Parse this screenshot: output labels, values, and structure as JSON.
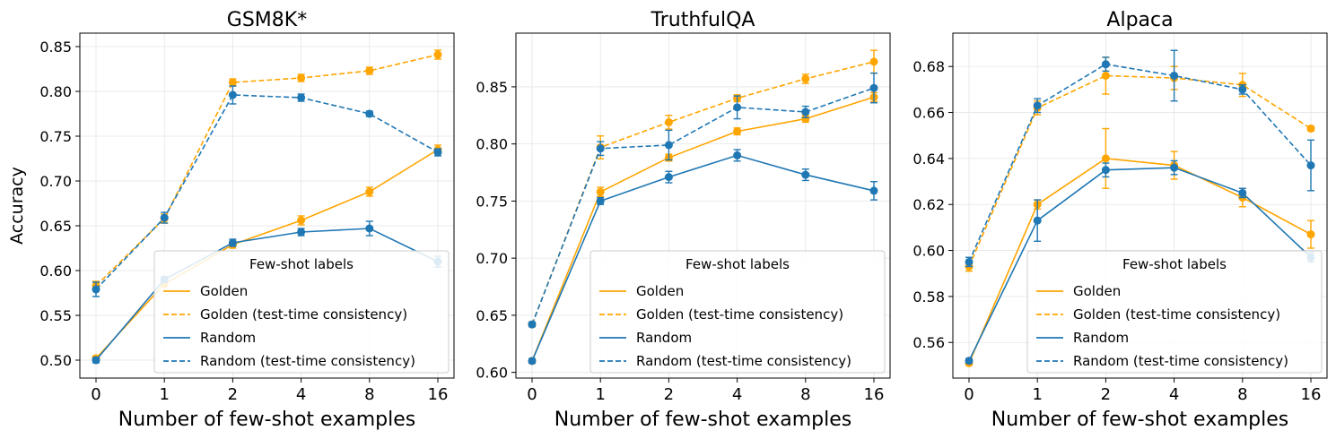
{
  "chart_data": [
    {
      "type": "line",
      "title": "GSM8K*",
      "xlabel": "Number of few-shot examples",
      "ylabel": "Accuracy",
      "categories": [
        "0",
        "1",
        "2",
        "4",
        "8",
        "16"
      ],
      "ylim": [
        0.48,
        0.865
      ],
      "yticks": [
        0.5,
        0.55,
        0.6,
        0.65,
        0.7,
        0.75,
        0.8,
        0.85
      ],
      "ytick_labels": [
        "0.50",
        "0.55",
        "0.60",
        "0.65",
        "0.70",
        "0.75",
        "0.80",
        "0.85"
      ],
      "legend_title": "Few-shot labels",
      "legend_position": "lower-right",
      "grid": true,
      "series": [
        {
          "name": "Golden",
          "style": "solid",
          "color": "#ffa500",
          "values": [
            0.502,
            0.585,
            0.629,
            0.656,
            0.688,
            0.735
          ],
          "err": [
            0.003,
            0.003,
            0.004,
            0.005,
            0.005,
            0.005
          ]
        },
        {
          "name": "Golden (test-time consistency)",
          "style": "dashed",
          "color": "#ffa500",
          "values": [
            0.583,
            0.658,
            0.81,
            0.815,
            0.823,
            0.841
          ],
          "err": [
            0.005,
            0.005,
            0.004,
            0.004,
            0.004,
            0.005
          ]
        },
        {
          "name": "Random",
          "style": "solid",
          "color": "#1f77b4",
          "values": [
            0.5,
            0.59,
            0.631,
            0.643,
            0.647,
            0.61
          ],
          "err": [
            0.003,
            0.003,
            0.004,
            0.004,
            0.008,
            0.006
          ]
        },
        {
          "name": "Random (test-time consistency)",
          "style": "dashed",
          "color": "#1f77b4",
          "values": [
            0.579,
            0.659,
            0.796,
            0.793,
            0.775,
            0.732
          ],
          "err": [
            0.008,
            0.006,
            0.01,
            0.004,
            0.003,
            0.004
          ]
        }
      ]
    },
    {
      "type": "line",
      "title": "TruthfulQA",
      "xlabel": "Number of few-shot examples",
      "ylabel": "",
      "categories": [
        "0",
        "1",
        "2",
        "4",
        "8",
        "16"
      ],
      "ylim": [
        0.595,
        0.897
      ],
      "yticks": [
        0.6,
        0.65,
        0.7,
        0.75,
        0.8,
        0.85
      ],
      "ytick_labels": [
        "0.60",
        "0.65",
        "0.70",
        "0.75",
        "0.80",
        "0.85"
      ],
      "legend_title": "Few-shot labels",
      "legend_position": "lower-right",
      "grid": true,
      "series": [
        {
          "name": "Golden",
          "style": "solid",
          "color": "#ffa500",
          "values": [
            0.61,
            0.758,
            0.788,
            0.811,
            0.822,
            0.841
          ],
          "err": [
            0.002,
            0.004,
            0.003,
            0.003,
            0.003,
            0.004
          ]
        },
        {
          "name": "Golden (test-time consistency)",
          "style": "dashed",
          "color": "#ffa500",
          "values": [
            0.642,
            0.797,
            0.819,
            0.84,
            0.857,
            0.872
          ],
          "err": [
            0.002,
            0.01,
            0.006,
            0.003,
            0.004,
            0.01
          ]
        },
        {
          "name": "Random",
          "style": "solid",
          "color": "#1f77b4",
          "values": [
            0.61,
            0.75,
            0.771,
            0.79,
            0.773,
            0.759
          ],
          "err": [
            0.002,
            0.003,
            0.005,
            0.005,
            0.005,
            0.008
          ]
        },
        {
          "name": "Random (test-time consistency)",
          "style": "dashed",
          "color": "#1f77b4",
          "values": [
            0.642,
            0.796,
            0.799,
            0.832,
            0.828,
            0.849
          ],
          "err": [
            0.002,
            0.006,
            0.013,
            0.01,
            0.005,
            0.013
          ]
        }
      ]
    },
    {
      "type": "line",
      "title": "Alpaca",
      "xlabel": "Number of few-shot examples",
      "ylabel": "",
      "categories": [
        "0",
        "1",
        "2",
        "4",
        "8",
        "16"
      ],
      "ylim": [
        0.5445,
        0.6945
      ],
      "yticks": [
        0.56,
        0.58,
        0.6,
        0.62,
        0.64,
        0.66,
        0.68
      ],
      "ytick_labels": [
        "0.56",
        "0.58",
        "0.60",
        "0.62",
        "0.64",
        "0.66",
        "0.68"
      ],
      "legend_title": "Few-shot labels",
      "legend_position": "lower-right",
      "grid": true,
      "series": [
        {
          "name": "Golden",
          "style": "solid",
          "color": "#ffa500",
          "values": [
            0.551,
            0.62,
            0.64,
            0.637,
            0.623,
            0.607
          ],
          "err": [
            0.001,
            0.002,
            0.013,
            0.006,
            0.004,
            0.006
          ]
        },
        {
          "name": "Golden (test-time consistency)",
          "style": "dashed",
          "color": "#ffa500",
          "values": [
            0.593,
            0.662,
            0.676,
            0.675,
            0.672,
            0.653
          ],
          "err": [
            0.002,
            0.003,
            0.008,
            0.005,
            0.005,
            0.001
          ]
        },
        {
          "name": "Random",
          "style": "solid",
          "color": "#1f77b4",
          "values": [
            0.552,
            0.613,
            0.635,
            0.636,
            0.625,
            0.597
          ],
          "err": [
            0.001,
            0.009,
            0.003,
            0.003,
            0.002,
            0.002
          ]
        },
        {
          "name": "Random (test-time consistency)",
          "style": "dashed",
          "color": "#1f77b4",
          "values": [
            0.595,
            0.663,
            0.681,
            0.676,
            0.67,
            0.637
          ],
          "err": [
            0.002,
            0.003,
            0.003,
            0.011,
            0.002,
            0.011
          ]
        }
      ]
    }
  ]
}
